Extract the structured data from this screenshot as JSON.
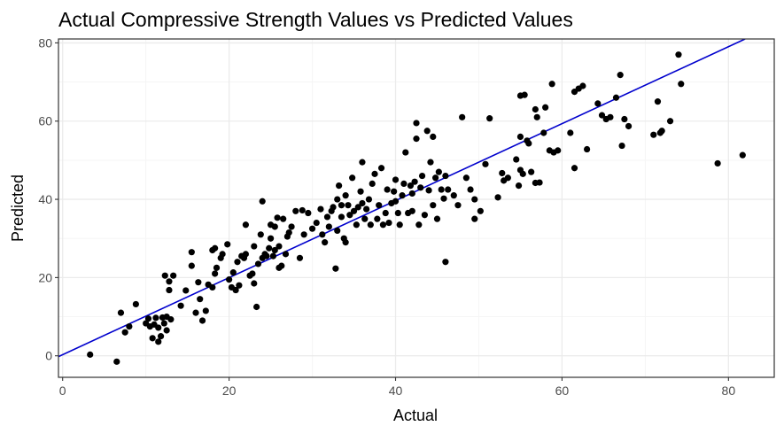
{
  "chart_data": {
    "type": "scatter",
    "title": "Actual Compressive Strength Values vs Predicted Values",
    "xlabel": "Actual",
    "ylabel": "Predicted",
    "xlim": [
      -0.5,
      85.5
    ],
    "ylim": [
      -5.5,
      81
    ],
    "x_ticks": [
      0,
      20,
      40,
      60,
      80
    ],
    "y_ticks": [
      0,
      20,
      40,
      60,
      80
    ],
    "grid": true,
    "legend": "none",
    "colors": {
      "points": "#000000",
      "fit_line": "#0000cd",
      "grid_major": "#ebebeb",
      "grid_minor": "#f5f5f5",
      "panel_border": "#333333"
    },
    "fit_line": {
      "x": [
        -0.5,
        82
      ],
      "y": [
        -0.2,
        81
      ]
    },
    "points": [
      [
        3.3,
        0.3
      ],
      [
        6.5,
        -1.5
      ],
      [
        7.0,
        11
      ],
      [
        7.5,
        6
      ],
      [
        8.0,
        7.5
      ],
      [
        8.8,
        13.2
      ],
      [
        10.0,
        8.3
      ],
      [
        10.3,
        9.5
      ],
      [
        10.5,
        7.5
      ],
      [
        10.8,
        4.5
      ],
      [
        11.0,
        8
      ],
      [
        11.2,
        9.7
      ],
      [
        11.5,
        7.2
      ],
      [
        11.5,
        3.6
      ],
      [
        11.8,
        5
      ],
      [
        12.0,
        9.8
      ],
      [
        12.2,
        8.3
      ],
      [
        12.3,
        20.5
      ],
      [
        12.5,
        6.5
      ],
      [
        12.5,
        10
      ],
      [
        12.8,
        16.8
      ],
      [
        12.8,
        19
      ],
      [
        13.0,
        9.3
      ],
      [
        13.3,
        20.5
      ],
      [
        14.2,
        12.8
      ],
      [
        14.8,
        16.7
      ],
      [
        15.5,
        23
      ],
      [
        15.5,
        26.5
      ],
      [
        16.0,
        11
      ],
      [
        16.3,
        18.8
      ],
      [
        16.5,
        14.5
      ],
      [
        16.8,
        9
      ],
      [
        17.2,
        11.5
      ],
      [
        17.5,
        18.2
      ],
      [
        18.0,
        17.5
      ],
      [
        18.0,
        27
      ],
      [
        18.3,
        27.5
      ],
      [
        18.3,
        21
      ],
      [
        18.5,
        22.5
      ],
      [
        19.0,
        25
      ],
      [
        19.2,
        26
      ],
      [
        19.8,
        28.5
      ],
      [
        20.0,
        19.5
      ],
      [
        20.3,
        17.5
      ],
      [
        20.5,
        21.3
      ],
      [
        20.8,
        16.8
      ],
      [
        21.0,
        24
      ],
      [
        21.2,
        18
      ],
      [
        21.5,
        25.5
      ],
      [
        21.8,
        25
      ],
      [
        22.0,
        33.5
      ],
      [
        22.0,
        26
      ],
      [
        22.5,
        20.5
      ],
      [
        22.8,
        21
      ],
      [
        23.0,
        28
      ],
      [
        23.0,
        18.5
      ],
      [
        23.3,
        12.5
      ],
      [
        23.5,
        23.5
      ],
      [
        23.8,
        31
      ],
      [
        24.0,
        25
      ],
      [
        24.0,
        39.5
      ],
      [
        24.3,
        26
      ],
      [
        24.5,
        25.5
      ],
      [
        24.8,
        27.5
      ],
      [
        25.0,
        30
      ],
      [
        25.0,
        33.5
      ],
      [
        25.3,
        25.5
      ],
      [
        25.5,
        27
      ],
      [
        25.5,
        33
      ],
      [
        25.8,
        35.3
      ],
      [
        26.0,
        22.5
      ],
      [
        26.0,
        28
      ],
      [
        26.3,
        23
      ],
      [
        26.5,
        35
      ],
      [
        26.8,
        26
      ],
      [
        27.0,
        30.5
      ],
      [
        27.2,
        31.5
      ],
      [
        27.5,
        33
      ],
      [
        28.0,
        37
      ],
      [
        28.5,
        25
      ],
      [
        28.8,
        37.2
      ],
      [
        29.0,
        31
      ],
      [
        29.5,
        36.5
      ],
      [
        30.0,
        32.5
      ],
      [
        30.5,
        34
      ],
      [
        31.0,
        37.5
      ],
      [
        31.2,
        31
      ],
      [
        31.5,
        29
      ],
      [
        31.8,
        35.5
      ],
      [
        32.0,
        33
      ],
      [
        32.3,
        37
      ],
      [
        32.5,
        38
      ],
      [
        32.8,
        22.3
      ],
      [
        33.0,
        32
      ],
      [
        33.0,
        40
      ],
      [
        33.2,
        43.5
      ],
      [
        33.5,
        38.5
      ],
      [
        33.5,
        35.5
      ],
      [
        33.8,
        30
      ],
      [
        34.0,
        41
      ],
      [
        34.0,
        29
      ],
      [
        34.3,
        38.5
      ],
      [
        34.5,
        36
      ],
      [
        34.8,
        45.5
      ],
      [
        35.0,
        37
      ],
      [
        35.3,
        33.5
      ],
      [
        35.5,
        38
      ],
      [
        35.8,
        42
      ],
      [
        36.0,
        49.5
      ],
      [
        36.0,
        39
      ],
      [
        36.3,
        35
      ],
      [
        36.5,
        37.5
      ],
      [
        36.8,
        40
      ],
      [
        37.0,
        33.5
      ],
      [
        37.2,
        44
      ],
      [
        37.5,
        46.5
      ],
      [
        37.8,
        35
      ],
      [
        38.0,
        38.5
      ],
      [
        38.3,
        48
      ],
      [
        38.5,
        33.5
      ],
      [
        38.8,
        36.5
      ],
      [
        39.0,
        42.5
      ],
      [
        39.2,
        34
      ],
      [
        39.5,
        39
      ],
      [
        39.8,
        42
      ],
      [
        40.0,
        45
      ],
      [
        40.0,
        39.5
      ],
      [
        40.3,
        36.5
      ],
      [
        40.5,
        33.5
      ],
      [
        40.8,
        41
      ],
      [
        41.0,
        44
      ],
      [
        41.2,
        52
      ],
      [
        41.5,
        36.5
      ],
      [
        41.8,
        43.5
      ],
      [
        42.0,
        41.5
      ],
      [
        42.0,
        37
      ],
      [
        42.3,
        44.5
      ],
      [
        42.5,
        55.5
      ],
      [
        42.5,
        59.5
      ],
      [
        42.8,
        33.5
      ],
      [
        43.0,
        43
      ],
      [
        43.2,
        46
      ],
      [
        43.5,
        36
      ],
      [
        43.8,
        57.5
      ],
      [
        44.0,
        42.3
      ],
      [
        44.2,
        49.5
      ],
      [
        44.5,
        38.5
      ],
      [
        44.5,
        56
      ],
      [
        44.8,
        45.5
      ],
      [
        45.0,
        35
      ],
      [
        45.2,
        47
      ],
      [
        45.5,
        42.5
      ],
      [
        45.8,
        40.2
      ],
      [
        46.0,
        24
      ],
      [
        46.0,
        46
      ],
      [
        46.3,
        42.5
      ],
      [
        47.0,
        41
      ],
      [
        47.5,
        38.5
      ],
      [
        48.0,
        61
      ],
      [
        48.5,
        45.5
      ],
      [
        49.0,
        42.5
      ],
      [
        49.5,
        40
      ],
      [
        49.5,
        35
      ],
      [
        50.2,
        37
      ],
      [
        50.8,
        49
      ],
      [
        51.3,
        60.7
      ],
      [
        52.3,
        40.5
      ],
      [
        52.8,
        46.7
      ],
      [
        53.0,
        44.8
      ],
      [
        53.5,
        45.5
      ],
      [
        54.5,
        50.2
      ],
      [
        54.8,
        43.5
      ],
      [
        55.0,
        56
      ],
      [
        55.0,
        66.5
      ],
      [
        55.0,
        47.5
      ],
      [
        55.3,
        46.5
      ],
      [
        55.5,
        66.7
      ],
      [
        55.8,
        55
      ],
      [
        56.0,
        54.3
      ],
      [
        56.3,
        47
      ],
      [
        56.8,
        63
      ],
      [
        56.8,
        44.2
      ],
      [
        57.0,
        61
      ],
      [
        57.3,
        44.3
      ],
      [
        57.8,
        57
      ],
      [
        58.0,
        63.5
      ],
      [
        58.5,
        52.5
      ],
      [
        58.8,
        69.5
      ],
      [
        59.0,
        52
      ],
      [
        59.5,
        52.5
      ],
      [
        61.0,
        57
      ],
      [
        61.5,
        48
      ],
      [
        61.5,
        67.5
      ],
      [
        62.0,
        68.3
      ],
      [
        62.5,
        69
      ],
      [
        63.0,
        52.8
      ],
      [
        64.3,
        64.5
      ],
      [
        64.8,
        61.5
      ],
      [
        65.3,
        60.5
      ],
      [
        65.8,
        61
      ],
      [
        66.5,
        66
      ],
      [
        67.0,
        71.8
      ],
      [
        67.2,
        53.7
      ],
      [
        67.5,
        60.5
      ],
      [
        68.0,
        58.7
      ],
      [
        71.0,
        56.5
      ],
      [
        71.5,
        65
      ],
      [
        71.8,
        57
      ],
      [
        72.0,
        57.5
      ],
      [
        73.0,
        60
      ],
      [
        74.0,
        77
      ],
      [
        74.3,
        69.5
      ],
      [
        78.7,
        49.2
      ],
      [
        81.7,
        51.3
      ]
    ]
  }
}
